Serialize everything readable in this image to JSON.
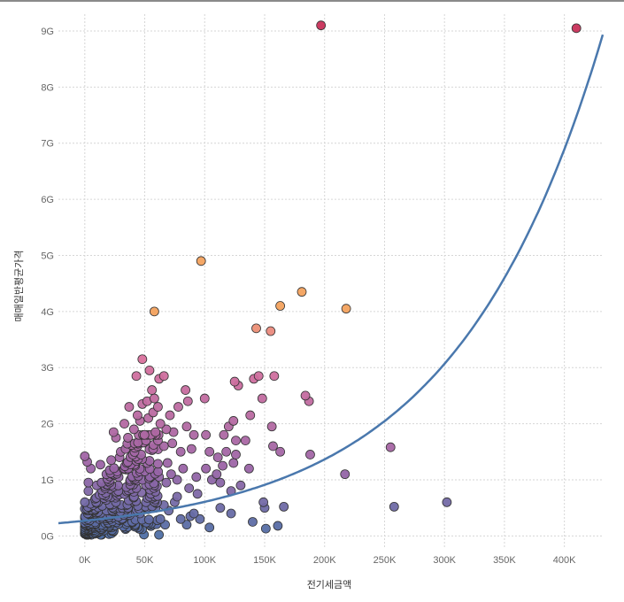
{
  "chart_data": {
    "type": "scatter",
    "xlabel": "전기세금액",
    "ylabel": "매매일반평균가격",
    "xlim": [
      -22000,
      432000
    ],
    "ylim": [
      -0.2,
      9.3
    ],
    "x_ticks": [
      0,
      50000,
      100000,
      150000,
      200000,
      250000,
      300000,
      350000,
      400000
    ],
    "x_tick_labels": [
      "0K",
      "50K",
      "100K",
      "150K",
      "200K",
      "250K",
      "300K",
      "350K",
      "400K"
    ],
    "y_ticks": [
      0,
      1,
      2,
      3,
      4,
      5,
      6,
      7,
      8,
      9
    ],
    "y_tick_labels": [
      "0G",
      "1G",
      "2G",
      "3G",
      "4G",
      "5G",
      "6G",
      "7G",
      "8G",
      "9G"
    ],
    "y_unit": "G",
    "grid": true,
    "legend": "none",
    "color_encoding": "by y value (blue low → purple → pink → orange high)",
    "colors": {
      "low": "#4e6fa5",
      "mid": "#9a64a6",
      "high": "#e1729b",
      "top": "#f3a25e",
      "max": "#c8325a",
      "trend": "#4a78ad"
    },
    "trend_line": {
      "type": "exponential",
      "a": 0.27,
      "b": 8.1e-06,
      "x_range": [
        -22000,
        432000
      ]
    },
    "cluster_note": "dense cluster of several hundred points between 0K–60K and 0G–1.8G",
    "series": [
      {
        "name": "",
        "points": [
          [
            197000,
            9.1
          ],
          [
            410000,
            9.05
          ],
          [
            97000,
            4.9
          ],
          [
            58000,
            4.0
          ],
          [
            181000,
            4.35
          ],
          [
            163000,
            4.1
          ],
          [
            218000,
            4.05
          ],
          [
            143000,
            3.7
          ],
          [
            155000,
            3.65
          ],
          [
            48000,
            3.15
          ],
          [
            54000,
            2.95
          ],
          [
            43000,
            2.85
          ],
          [
            66000,
            2.85
          ],
          [
            62000,
            2.8
          ],
          [
            158000,
            2.85
          ],
          [
            145000,
            2.85
          ],
          [
            125000,
            2.75
          ],
          [
            128000,
            2.68
          ],
          [
            141000,
            2.8
          ],
          [
            84000,
            2.6
          ],
          [
            56000,
            2.6
          ],
          [
            100000,
            2.45
          ],
          [
            148000,
            2.45
          ],
          [
            184000,
            2.5
          ],
          [
            187000,
            2.4
          ],
          [
            37000,
            2.3
          ],
          [
            48000,
            2.35
          ],
          [
            52000,
            2.4
          ],
          [
            58000,
            2.45
          ],
          [
            61000,
            2.3
          ],
          [
            78000,
            2.3
          ],
          [
            86000,
            2.4
          ],
          [
            138000,
            2.15
          ],
          [
            124000,
            2.05
          ],
          [
            71000,
            2.15
          ],
          [
            44000,
            2.15
          ],
          [
            33000,
            2.0
          ],
          [
            63000,
            2.0
          ],
          [
            85000,
            1.95
          ],
          [
            101000,
            1.8
          ],
          [
            116000,
            1.8
          ],
          [
            120000,
            1.95
          ],
          [
            156000,
            1.95
          ],
          [
            126000,
            1.7
          ],
          [
            134000,
            1.7
          ],
          [
            24000,
            1.85
          ],
          [
            26000,
            1.75
          ],
          [
            45000,
            1.8
          ],
          [
            73000,
            1.65
          ],
          [
            91000,
            1.8
          ],
          [
            74000,
            1.85
          ],
          [
            157000,
            1.6
          ],
          [
            163000,
            1.5
          ],
          [
            188000,
            1.45
          ],
          [
            255000,
            1.58
          ],
          [
            80000,
            1.5
          ],
          [
            89000,
            1.55
          ],
          [
            104000,
            1.5
          ],
          [
            111000,
            1.4
          ],
          [
            118000,
            1.5
          ],
          [
            126000,
            1.45
          ],
          [
            115000,
            1.25
          ],
          [
            101000,
            1.2
          ],
          [
            124000,
            1.3
          ],
          [
            137000,
            1.2
          ],
          [
            217000,
            1.1
          ],
          [
            110000,
            1.1
          ],
          [
            93000,
            1.05
          ],
          [
            106000,
            1.0
          ],
          [
            113000,
            0.95
          ],
          [
            130000,
            0.9
          ],
          [
            87000,
            0.85
          ],
          [
            77000,
            0.7
          ],
          [
            66000,
            0.55
          ],
          [
            94000,
            0.75
          ],
          [
            122000,
            0.8
          ],
          [
            149000,
            0.6
          ],
          [
            150000,
            0.5
          ],
          [
            166000,
            0.52
          ],
          [
            113000,
            0.5
          ],
          [
            122000,
            0.4
          ],
          [
            88000,
            0.35
          ],
          [
            91000,
            0.4
          ],
          [
            96000,
            0.3
          ],
          [
            140000,
            0.25
          ],
          [
            104000,
            0.15
          ],
          [
            85000,
            0.2
          ],
          [
            67000,
            0.2
          ],
          [
            151000,
            0.13
          ],
          [
            161000,
            0.18
          ],
          [
            258000,
            0.52
          ],
          [
            302000,
            0.6
          ],
          [
            0,
            1.42
          ],
          [
            2000,
            1.32
          ],
          [
            5000,
            1.2
          ],
          [
            13000,
            1.27
          ],
          [
            18000,
            1.1
          ],
          [
            22000,
            1.35
          ],
          [
            30000,
            1.5
          ],
          [
            35000,
            1.3
          ],
          [
            39000,
            1.62
          ],
          [
            47000,
            1.45
          ],
          [
            52000,
            1.3
          ],
          [
            57000,
            1.55
          ],
          [
            61000,
            1.7
          ],
          [
            66000,
            1.6
          ],
          [
            69000,
            1.3
          ],
          [
            72000,
            1.1
          ],
          [
            77000,
            1.0
          ],
          [
            82000,
            1.2
          ],
          [
            68000,
            0.95
          ],
          [
            58000,
            0.9
          ],
          [
            48000,
            1.0
          ],
          [
            38000,
            1.0
          ],
          [
            28000,
            0.8
          ],
          [
            19000,
            0.7
          ],
          [
            10000,
            0.9
          ],
          [
            3000,
            0.8
          ],
          [
            0,
            0.6
          ],
          [
            4000,
            0.4
          ],
          [
            8000,
            0.2
          ],
          [
            12000,
            0.3
          ],
          [
            16000,
            0.1
          ],
          [
            20000,
            0.45
          ],
          [
            26000,
            0.6
          ],
          [
            31000,
            0.3
          ],
          [
            36000,
            0.5
          ],
          [
            41000,
            0.7
          ],
          [
            46000,
            0.4
          ],
          [
            51000,
            0.6
          ],
          [
            55000,
            0.75
          ],
          [
            59000,
            0.5
          ],
          [
            63000,
            0.3
          ],
          [
            70000,
            0.45
          ],
          [
            75000,
            0.6
          ],
          [
            80000,
            0.3
          ],
          [
            0,
            0.05
          ],
          [
            6000,
            0.05
          ],
          [
            14000,
            0.02
          ],
          [
            24000,
            0.08
          ],
          [
            34000,
            0.12
          ],
          [
            44000,
            0.15
          ],
          [
            54000,
            0.2
          ],
          [
            3000,
            0.95
          ],
          [
            7000,
            0.55
          ],
          [
            11000,
            0.6
          ],
          [
            17000,
            0.85
          ],
          [
            21000,
            1.0
          ],
          [
            27000,
            1.15
          ],
          [
            33000,
            1.2
          ],
          [
            42000,
            1.25
          ],
          [
            50000,
            1.15
          ],
          [
            55000,
            1.05
          ],
          [
            62000,
            1.05
          ],
          [
            29000,
            1.4
          ],
          [
            34000,
            1.55
          ],
          [
            40000,
            1.45
          ],
          [
            44000,
            1.6
          ],
          [
            51000,
            1.7
          ],
          [
            59000,
            1.85
          ],
          [
            68000,
            1.9
          ],
          [
            36000,
            1.75
          ],
          [
            41000,
            1.9
          ],
          [
            46000,
            2.05
          ],
          [
            53000,
            2.1
          ],
          [
            57000,
            2.2
          ]
        ]
      }
    ]
  }
}
